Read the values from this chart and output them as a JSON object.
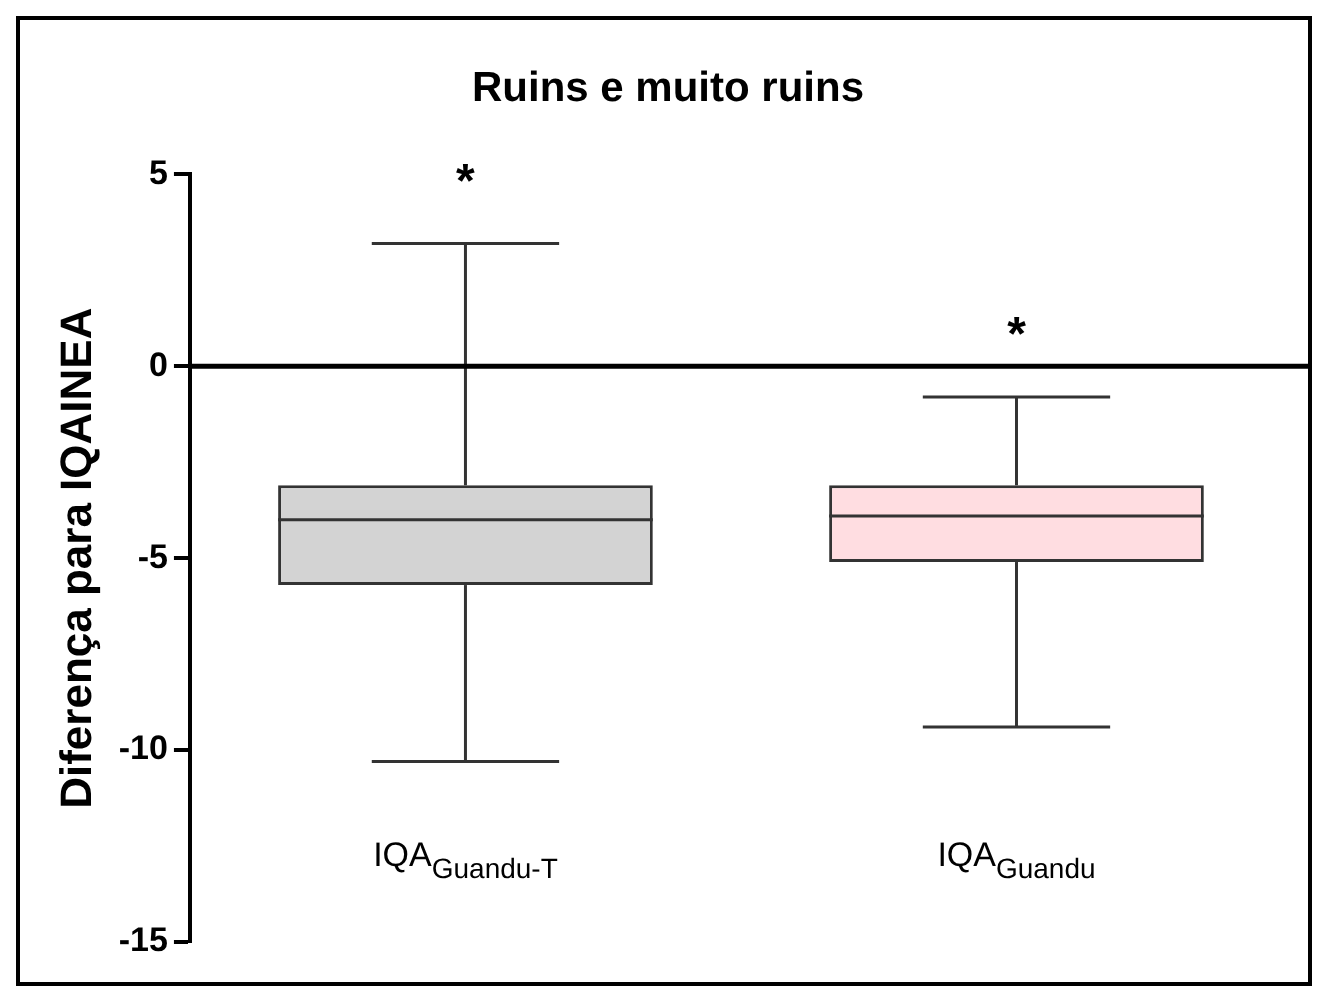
{
  "chart_data": {
    "type": "box",
    "title": "Ruins e muito ruins",
    "ylabel": "Diferença para IQAINEA",
    "categories": [
      "IQA$_{Guandu-T}$",
      "IQA$_{Guandu}$"
    ],
    "colors": [
      "#d3d3d3",
      "#ffdde1"
    ],
    "boxes": [
      {
        "low": -10.3,
        "q1": -5.7,
        "median": -4.0,
        "q3": -3.1,
        "high": 3.2
      },
      {
        "low": -9.4,
        "q1": -5.1,
        "median": -3.9,
        "q3": -3.1,
        "high": -0.8
      }
    ],
    "ylim": [
      -15,
      5
    ],
    "yticks": [
      -15,
      -10,
      -5,
      0,
      5
    ],
    "ref_lines": [
      {
        "axis": "y",
        "value": 0,
        "color": "#000000"
      }
    ],
    "annotations": [
      "*",
      "*"
    ],
    "grid": false,
    "legend": false
  }
}
